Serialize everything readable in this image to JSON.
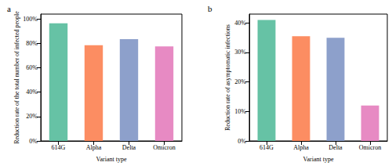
{
  "chart_data": [
    {
      "type": "bar",
      "title": "a",
      "x_label": "Variant type",
      "y_label": "Reduction rate of the total number of infected people",
      "categories": [
        "614G",
        "Alpha",
        "Delta",
        "Omicron"
      ],
      "values": [
        96.5,
        78.5,
        83.5,
        77.5
      ],
      "colors": [
        "#66c2a5",
        "#fc8d62",
        "#8da0cb",
        "#e78ac3"
      ],
      "ylim": [
        0,
        104
      ],
      "yticks": [
        {
          "value": 0,
          "label": "0%"
        },
        {
          "value": 20,
          "label": "20%"
        },
        {
          "value": 40,
          "label": "40%"
        },
        {
          "value": 60,
          "label": "60%"
        },
        {
          "value": 80,
          "label": "80%"
        },
        {
          "value": 100,
          "label": "100%"
        }
      ],
      "grid": false
    },
    {
      "type": "bar",
      "title": "b",
      "x_label": "Variant type",
      "y_label": "Reduction rate of asymptomatic infections",
      "categories": [
        "614G",
        "Alpha",
        "Delta",
        "Omicron"
      ],
      "values": [
        41,
        35.5,
        35,
        12
      ],
      "colors": [
        "#66c2a5",
        "#fc8d62",
        "#8da0cb",
        "#e78ac3"
      ],
      "ylim": [
        0,
        43
      ],
      "yticks": [
        {
          "value": 0,
          "label": "0%"
        },
        {
          "value": 10,
          "label": "10%"
        },
        {
          "value": 20,
          "label": "20%"
        },
        {
          "value": 30,
          "label": "30%"
        },
        {
          "value": 40,
          "label": "40%"
        }
      ],
      "grid": false
    }
  ]
}
